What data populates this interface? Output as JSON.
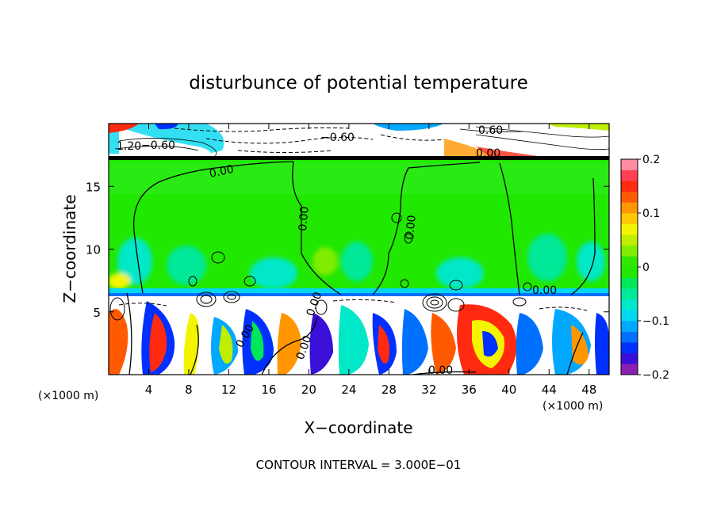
{
  "chart_data": {
    "type": "heatmap",
    "title": "disturbunce of potential temperature",
    "xlabel": "X−coordinate",
    "ylabel": "Z−coordinate",
    "x_unit_left": "(×1000 m)",
    "x_unit_right": "(×1000 m)",
    "xlim": [
      0,
      50
    ],
    "ylim": [
      0,
      20
    ],
    "x_ticks": [
      4,
      8,
      12,
      16,
      20,
      24,
      28,
      32,
      36,
      40,
      44,
      48
    ],
    "x_tick_labels": [
      "4",
      "8",
      "12",
      "16",
      "20",
      "24",
      "28",
      "32",
      "36",
      "40",
      "44",
      "48"
    ],
    "y_ticks": [
      5,
      10,
      15
    ],
    "y_tick_labels": [
      "5",
      "10",
      "15"
    ],
    "colorbar": {
      "range": [
        -0.2,
        0.2
      ],
      "tick_values": [
        -0.2,
        -0.1,
        0,
        0.1,
        0.2
      ],
      "tick_labels": [
        "−0.2",
        "−0.1",
        "0",
        "0.1",
        "0.2"
      ],
      "colors": [
        "#8b1fb4",
        "#3a10d8",
        "#0030ff",
        "#0070ff",
        "#00a8ff",
        "#00d8f0",
        "#00e8c8",
        "#00e89a",
        "#00e858",
        "#20e800",
        "#30e800",
        "#80ec00",
        "#c0ee00",
        "#f4f400",
        "#ffc800",
        "#ff9600",
        "#ff5a00",
        "#ff2a10",
        "#ff4050",
        "#ff8ca0"
      ]
    },
    "contour_labels": [
      "−0.60",
      "−0.60",
      "0.60",
      "1.20",
      "0.00",
      "0.00",
      "0.00",
      "0.00",
      "0.00",
      "0.00",
      "0.00",
      "0.00",
      "0.00"
    ],
    "footer": "CONTOUR INTERVAL = 3.000E−01"
  }
}
